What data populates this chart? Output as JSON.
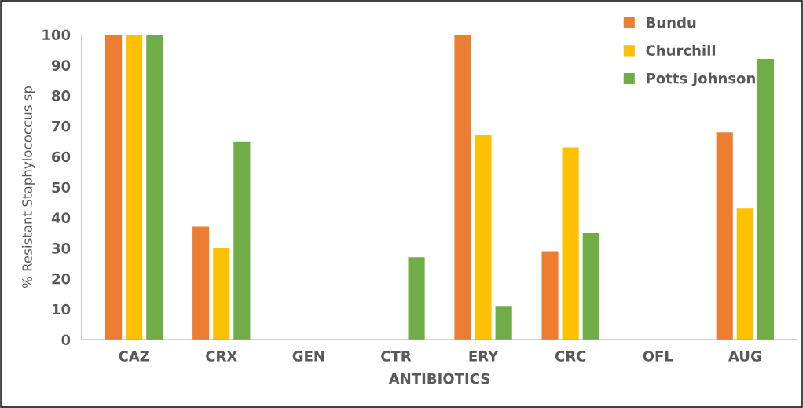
{
  "chart_data": {
    "type": "bar",
    "xlabel": "ANTIBIOTICS",
    "ylabel": "% Resistant Staphylococcus sp",
    "categories": [
      "CAZ",
      "CRX",
      "GEN",
      "CTR",
      "ERY",
      "CRC",
      "OFL",
      "AUG"
    ],
    "series": [
      {
        "name": "Bundu",
        "color": "#ed7d31",
        "values": [
          100,
          37,
          0,
          0,
          100,
          29,
          0,
          68
        ]
      },
      {
        "name": "Churchill",
        "color": "#ffc000",
        "values": [
          100,
          30,
          0,
          0,
          67,
          63,
          0,
          43
        ]
      },
      {
        "name": "Potts Johnson",
        "color": "#70ad47",
        "values": [
          100,
          65,
          0,
          27,
          11,
          35,
          0,
          92
        ]
      }
    ],
    "ylim": [
      0,
      100
    ],
    "yticks": [
      0,
      10,
      20,
      30,
      40,
      50,
      60,
      70,
      80,
      90,
      100
    ],
    "grid": false,
    "legend": "top right"
  }
}
